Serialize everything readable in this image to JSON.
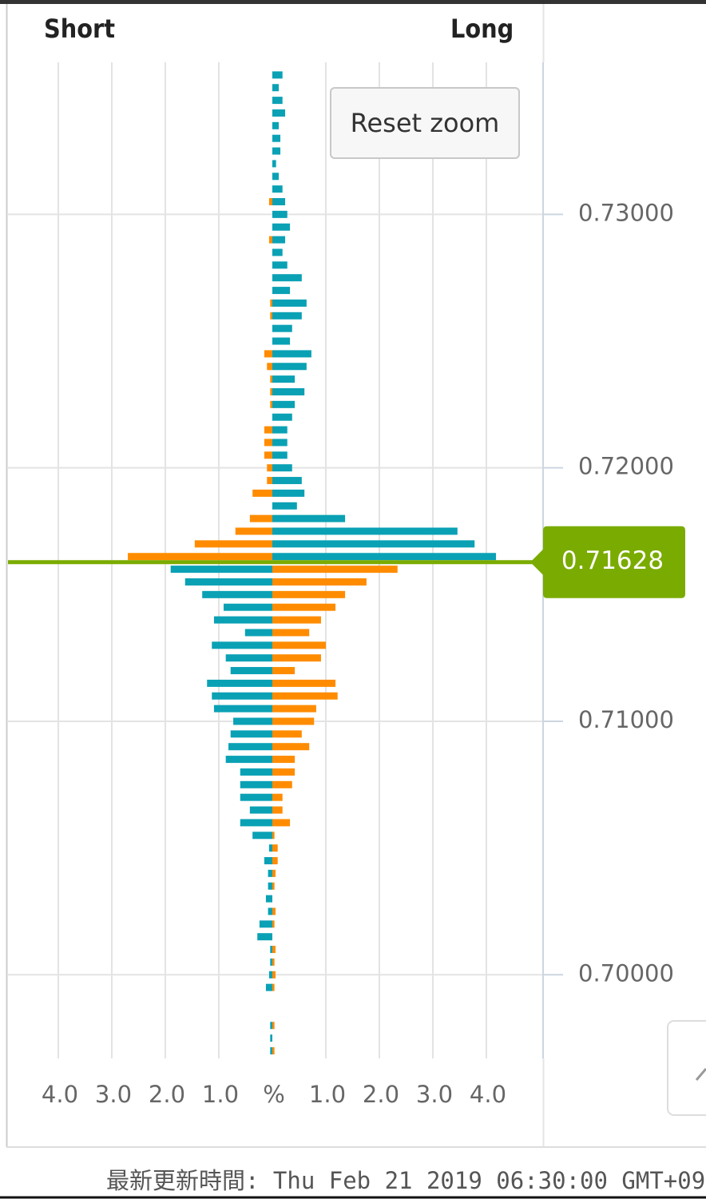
{
  "chart_data": {
    "type": "bar",
    "orientation": "horizontal",
    "y": [
      0.7355,
      0.735,
      0.7345,
      0.734,
      0.7335,
      0.733,
      0.7325,
      0.732,
      0.7315,
      0.731,
      0.7305,
      0.73,
      0.7295,
      0.729,
      0.7285,
      0.728,
      0.7275,
      0.727,
      0.7265,
      0.726,
      0.7255,
      0.725,
      0.7245,
      0.724,
      0.7235,
      0.723,
      0.7225,
      0.722,
      0.7215,
      0.721,
      0.7205,
      0.72,
      0.7195,
      0.719,
      0.7185,
      0.718,
      0.7175,
      0.717,
      0.7165,
      0.716,
      0.7155,
      0.715,
      0.7145,
      0.714,
      0.7135,
      0.713,
      0.7125,
      0.712,
      0.7115,
      0.711,
      0.7105,
      0.71,
      0.7095,
      0.709,
      0.7085,
      0.708,
      0.7075,
      0.707,
      0.7065,
      0.706,
      0.7055,
      0.705,
      0.7045,
      0.704,
      0.7035,
      0.703,
      0.7025,
      0.702,
      0.7015,
      0.701,
      0.7005,
      0.7,
      0.6995,
      0.699,
      0.6985,
      0.698,
      0.6975,
      0.697
    ],
    "series": [
      {
        "name": "Short",
        "color_above": "#ff8c00",
        "color_below": "#0aa1b5",
        "values": [
          0,
          0,
          0,
          0,
          0,
          0,
          0,
          0,
          0,
          0,
          -0.06,
          0,
          0,
          -0.06,
          0,
          0,
          0,
          0,
          -0.04,
          -0.04,
          0,
          0,
          -0.15,
          -0.1,
          -0.04,
          -0.04,
          -0.04,
          0,
          -0.15,
          -0.15,
          -0.15,
          -0.1,
          -0.1,
          -0.37,
          0,
          -0.42,
          -0.69,
          -1.45,
          -2.7,
          -1.9,
          -1.63,
          -1.31,
          -0.91,
          -1.09,
          -0.51,
          -1.13,
          -0.87,
          -0.78,
          -1.22,
          -1.13,
          -1.09,
          -0.73,
          -0.78,
          -0.82,
          -0.87,
          -0.6,
          -0.6,
          -0.6,
          -0.42,
          -0.6,
          -0.37,
          -0.06,
          -0.15,
          -0.08,
          -0.08,
          -0.12,
          -0.08,
          -0.24,
          -0.28,
          -0.04,
          -0.04,
          -0.06,
          -0.12,
          0,
          0,
          -0.04,
          -0.04,
          -0.04
        ]
      },
      {
        "name": "Long",
        "color_above": "#0aa1b5",
        "color_below": "#ff8c00",
        "values": [
          0.19,
          0.12,
          0.19,
          0.24,
          0.12,
          0.15,
          0.15,
          0.07,
          0.12,
          0.19,
          0.24,
          0.28,
          0.33,
          0.24,
          0.19,
          0.28,
          0.55,
          0.33,
          0.64,
          0.55,
          0.37,
          0.33,
          0.73,
          0.64,
          0.42,
          0.6,
          0.42,
          0.37,
          0.28,
          0.28,
          0.28,
          0.37,
          0.55,
          0.6,
          0.46,
          1.36,
          3.46,
          3.78,
          4.18,
          2.34,
          1.76,
          1.36,
          1.18,
          0.91,
          0.69,
          1.0,
          0.91,
          0.42,
          1.18,
          1.22,
          0.82,
          0.78,
          0.55,
          0.69,
          0.42,
          0.42,
          0.37,
          0.19,
          0.19,
          0.33,
          0.04,
          0.1,
          0.1,
          0.06,
          0.04,
          0,
          0.06,
          0.04,
          0,
          0.06,
          0.04,
          0.06,
          0.04,
          0,
          0,
          0.04,
          0,
          0.04
        ]
      }
    ],
    "current_price": 0.71628,
    "current_price_color": "#7aab00",
    "xlim": [
      -4.94,
      5.06
    ],
    "xticks": [
      {
        "value": -4,
        "label": "4.0"
      },
      {
        "value": -3,
        "label": "3.0"
      },
      {
        "value": -2,
        "label": "2.0"
      },
      {
        "value": -1,
        "label": "1.0"
      },
      {
        "value": 0,
        "label": "%"
      },
      {
        "value": 1,
        "label": "1.0"
      },
      {
        "value": 2,
        "label": "2.0"
      },
      {
        "value": 3,
        "label": "3.0"
      },
      {
        "value": 4,
        "label": "4.0"
      }
    ],
    "ylim": [
      0.6967,
      0.736
    ],
    "yticks": [
      {
        "value": 0.7,
        "label": "0.70000"
      },
      {
        "value": 0.71,
        "label": "0.71000"
      },
      {
        "value": 0.72,
        "label": "0.72000"
      },
      {
        "value": 0.73,
        "label": "0.73000"
      }
    ],
    "grid": true,
    "reset_button": "Reset zoom"
  },
  "footer": "最新更新時間: Thu Feb 21 2019 06:30:00 GMT+0900"
}
